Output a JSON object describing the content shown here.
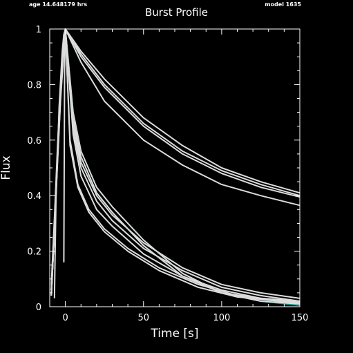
{
  "header": {
    "left_text": "age 14.648179 hrs",
    "right_text": "model 1635"
  },
  "chart_data": {
    "type": "line",
    "title": "Burst Profile",
    "xlabel": "Time [s]",
    "ylabel": "Flux",
    "xlim": [
      -10,
      150
    ],
    "ylim": [
      0,
      1
    ],
    "x_ticks": [
      0,
      50,
      100,
      150
    ],
    "y_ticks": [
      0,
      0.2,
      0.4,
      0.6,
      0.8,
      1
    ],
    "y_tick_labels": [
      "0",
      "0.2",
      "0.4",
      "0.6",
      "0.8",
      "1"
    ],
    "grid": false,
    "colors": {
      "background": "#000000",
      "axes": "#ffffff",
      "curves": "#dcdcdc",
      "highlight": "#1aa39a"
    },
    "series": [
      {
        "color": "#dcdcdc",
        "x": [
          -9,
          -7,
          -5,
          -3,
          -1,
          0,
          10,
          25,
          50,
          75,
          100,
          125,
          150
        ],
        "y": [
          0.08,
          0.32,
          0.58,
          0.8,
          0.96,
          1.0,
          0.92,
          0.82,
          0.68,
          0.58,
          0.5,
          0.45,
          0.41
        ]
      },
      {
        "color": "#dcdcdc",
        "x": [
          -9,
          -7,
          -5,
          -3,
          -1,
          0,
          10,
          25,
          50,
          75,
          100,
          125,
          150
        ],
        "y": [
          0.06,
          0.3,
          0.56,
          0.78,
          0.95,
          1.0,
          0.91,
          0.8,
          0.66,
          0.56,
          0.49,
          0.44,
          0.4
        ]
      },
      {
        "color": "#dcdcdc",
        "x": [
          -9,
          -7,
          -5,
          -3,
          -1,
          0,
          10,
          25,
          50,
          75,
          100,
          125,
          150
        ],
        "y": [
          0.06,
          0.3,
          0.55,
          0.78,
          0.95,
          1.0,
          0.9,
          0.79,
          0.65,
          0.55,
          0.48,
          0.43,
          0.395
        ]
      },
      {
        "color": "#dcdcdc",
        "x": [
          -9,
          -7,
          -5,
          -3,
          -1,
          0,
          10,
          25,
          50,
          75,
          100,
          125,
          150
        ],
        "y": [
          0.06,
          0.3,
          0.55,
          0.78,
          0.95,
          1.0,
          0.88,
          0.74,
          0.6,
          0.51,
          0.44,
          0.4,
          0.365
        ]
      },
      {
        "color": "#dcdcdc",
        "x": [
          -9,
          -7,
          -5,
          -3,
          -1,
          0,
          5,
          10,
          20,
          30,
          50,
          75,
          100,
          125,
          150
        ],
        "y": [
          0.05,
          0.28,
          0.54,
          0.77,
          0.94,
          1.0,
          0.7,
          0.56,
          0.43,
          0.36,
          0.24,
          0.12,
          0.05,
          0.03,
          0.02
        ]
      },
      {
        "color": "#1aa39a",
        "x": [
          -9,
          -7,
          -5,
          -3,
          -1,
          0,
          5,
          10,
          20,
          30,
          50,
          75,
          100,
          125,
          150
        ],
        "y": [
          0.04,
          0.28,
          0.54,
          0.77,
          0.94,
          1.0,
          0.68,
          0.54,
          0.41,
          0.34,
          0.22,
          0.11,
          0.05,
          0.02,
          0.005
        ]
      },
      {
        "color": "#dcdcdc",
        "x": [
          -9,
          -7,
          -5,
          -3,
          -1,
          0,
          5,
          10,
          20,
          30,
          50,
          75,
          100,
          125,
          150
        ],
        "y": [
          0.04,
          0.28,
          0.54,
          0.77,
          0.94,
          1.0,
          0.68,
          0.54,
          0.41,
          0.34,
          0.22,
          0.11,
          0.05,
          0.02,
          0.01
        ]
      },
      {
        "color": "#dcdcdc",
        "x": [
          -9,
          -7,
          -5,
          -3,
          -1,
          0,
          5,
          10,
          20,
          30,
          50,
          75,
          100,
          125,
          150
        ],
        "y": [
          0.04,
          0.28,
          0.53,
          0.76,
          0.93,
          1.0,
          0.66,
          0.52,
          0.4,
          0.33,
          0.23,
          0.14,
          0.08,
          0.05,
          0.03
        ]
      },
      {
        "color": "#dcdcdc",
        "x": [
          -9,
          -7,
          -5,
          -3,
          -1,
          0,
          5,
          10,
          20,
          30,
          50,
          75,
          100,
          125,
          150
        ],
        "y": [
          0.04,
          0.28,
          0.53,
          0.76,
          0.93,
          1.0,
          0.64,
          0.5,
          0.38,
          0.31,
          0.21,
          0.13,
          0.07,
          0.04,
          0.02
        ]
      },
      {
        "color": "#dcdcdc",
        "x": [
          -9,
          -7,
          -5,
          -3,
          -1,
          0,
          5,
          10,
          20,
          30,
          50,
          75,
          100,
          125,
          150
        ],
        "y": [
          0.04,
          0.28,
          0.52,
          0.75,
          0.92,
          1.0,
          0.62,
          0.47,
          0.35,
          0.29,
          0.19,
          0.11,
          0.06,
          0.03,
          0.02
        ]
      },
      {
        "color": "#dcdcdc",
        "x": [
          -7,
          -6,
          -4,
          -2,
          -1,
          0,
          3,
          8,
          15,
          25,
          40,
          60,
          85,
          110,
          150
        ],
        "y": [
          0.03,
          0.38,
          0.72,
          0.92,
          0.98,
          1.0,
          0.58,
          0.43,
          0.34,
          0.27,
          0.2,
          0.13,
          0.07,
          0.035,
          0.012
        ]
      },
      {
        "color": "#dcdcdc",
        "x": [
          -1,
          -0.5,
          0,
          3,
          8,
          15,
          25,
          40,
          60,
          85,
          110,
          150
        ],
        "y": [
          0.16,
          0.85,
          1.0,
          0.6,
          0.44,
          0.35,
          0.28,
          0.21,
          0.14,
          0.08,
          0.04,
          0.015
        ]
      }
    ]
  }
}
